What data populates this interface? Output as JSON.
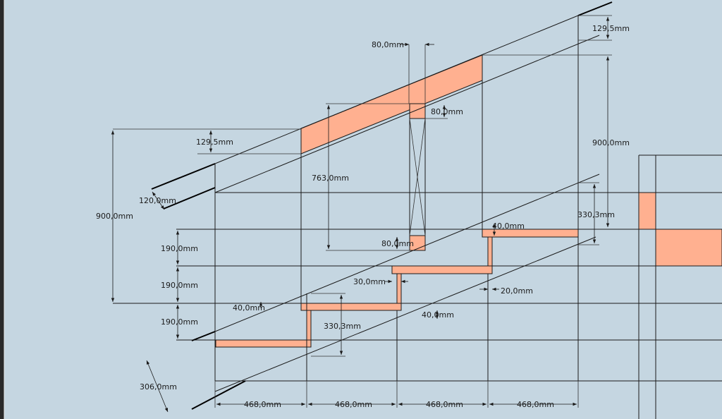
{
  "drawing": {
    "background": "#c5d6e1",
    "part_color": "#ffb090",
    "line_color": "#1a1a1a"
  },
  "dimensions": {
    "top_thickness": "129,5mm",
    "top_post_width": "80,0mm",
    "post_top_block": "80,0mm",
    "right_height": "900,0mm",
    "left_thickness": "129,5mm",
    "left_height": "900,0mm",
    "rafter_depth": "120,0mm",
    "post_height": "763,0mm",
    "post_bottom_block": "80,0mm",
    "riser_1": "190,0mm",
    "riser_2": "190,0mm",
    "riser_3": "190,0mm",
    "right_tread_rise": "330,3mm",
    "tread_top_right": "40,0mm",
    "tread_step_offset": "30,0mm",
    "tread_gap": "20,0mm",
    "tread_left": "40,0mm",
    "tread_mid": "40,0mm",
    "left_tread_rise": "330,3mm",
    "stringer_depth": "306,0mm",
    "going_1": "468,0mm",
    "going_2": "468,0mm",
    "going_3": "468,0mm",
    "going_4": "468,0mm"
  }
}
